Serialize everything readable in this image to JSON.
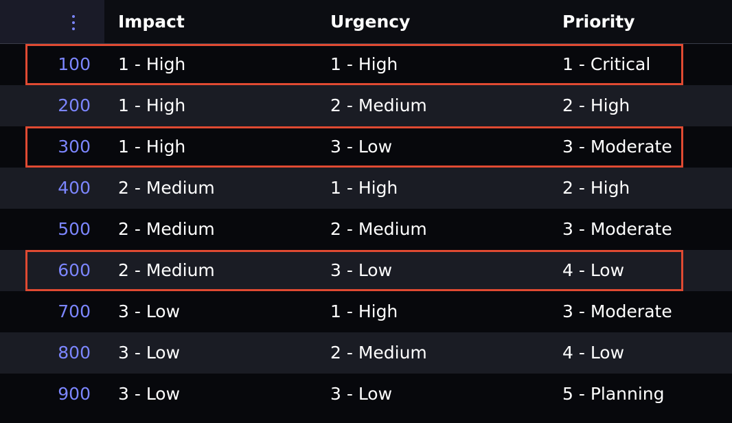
{
  "header": {
    "menu_icon": "vertical-ellipsis-icon",
    "columns": [
      "Impact",
      "Urgency",
      "Priority"
    ]
  },
  "colors": {
    "number_accent": "#7c86ff",
    "highlight_border": "#e04a32",
    "row_dark": "#07080c",
    "row_light": "#1a1c24"
  },
  "rows": [
    {
      "num": "100",
      "impact": "1 - High",
      "urgency": "1 - High",
      "priority": "1 - Critical",
      "highlighted": true
    },
    {
      "num": "200",
      "impact": "1 - High",
      "urgency": "2 - Medium",
      "priority": "2 - High",
      "highlighted": false
    },
    {
      "num": "300",
      "impact": "1 - High",
      "urgency": "3 - Low",
      "priority": "3 - Moderate",
      "highlighted": true
    },
    {
      "num": "400",
      "impact": "2 - Medium",
      "urgency": "1 - High",
      "priority": "2 - High",
      "highlighted": false
    },
    {
      "num": "500",
      "impact": "2 - Medium",
      "urgency": "2 - Medium",
      "priority": "3 - Moderate",
      "highlighted": false
    },
    {
      "num": "600",
      "impact": "2 - Medium",
      "urgency": "3 - Low",
      "priority": "4 - Low",
      "highlighted": true
    },
    {
      "num": "700",
      "impact": "3 - Low",
      "urgency": "1 - High",
      "priority": "3 - Moderate",
      "highlighted": false
    },
    {
      "num": "800",
      "impact": "3 - Low",
      "urgency": "2 - Medium",
      "priority": "4 - Low",
      "highlighted": false
    },
    {
      "num": "900",
      "impact": "3 - Low",
      "urgency": "3 - Low",
      "priority": "5 - Planning",
      "highlighted": false
    }
  ]
}
